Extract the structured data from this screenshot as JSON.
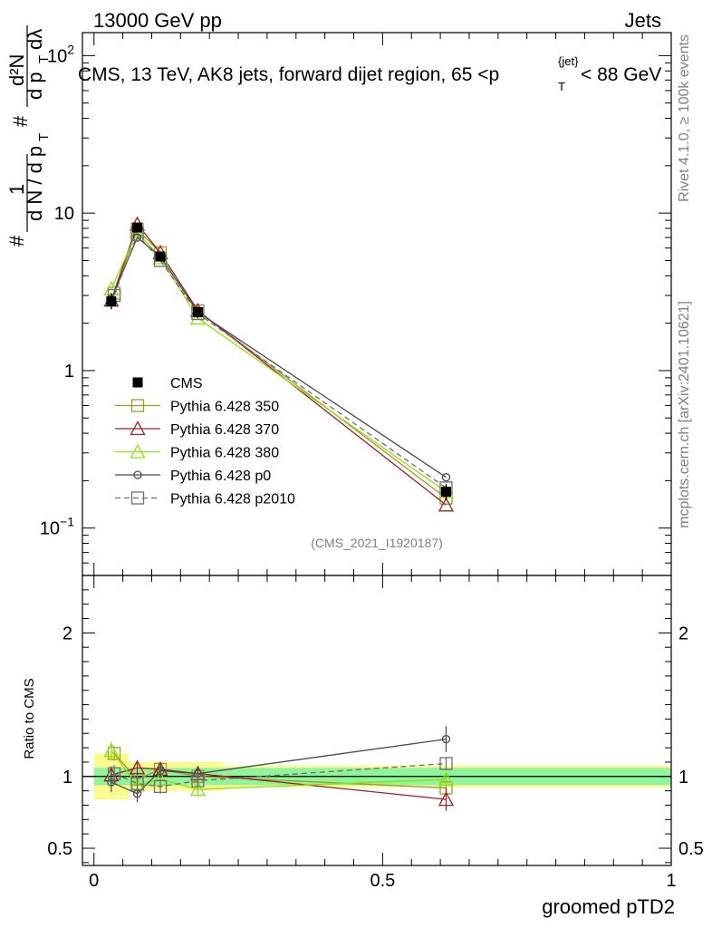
{
  "header": {
    "left": "13000 GeV pp",
    "right": "Jets"
  },
  "side_labels": {
    "rivet": "Rivet 4.1.0, ≥ 100k events",
    "mcplots": "mcplots.cern.ch [arXiv:2401.10621]"
  },
  "plot_title": {
    "main": "CMS, 13 TeV, AK8 jets, forward dijet region, 65 <p",
    "sub": "T",
    "sup": "{jet}",
    "tail": "< 88 GeV"
  },
  "watermark": "(CMS_2021_I1920187)",
  "y_title_parts": {
    "hash1": "#",
    "one": "1",
    "dN": "d N / d p",
    "T1": "T",
    "hash2": "#",
    "d2N": "d²N",
    "dpT": "d p",
    "T2": "T",
    "dlambda": "dλ"
  },
  "chart_data": {
    "type": "line",
    "xlabel": "groomed pTD2",
    "ylabel": "(1/N) d²N / (dp_T dλ)",
    "ratio_ylabel": "Ratio to CMS",
    "xlim": [
      -0.02,
      1.0
    ],
    "ylim": [
      0.05,
      140
    ],
    "yscale": "log",
    "ratio_ylim": [
      0.38,
      2.4
    ],
    "x_ticks": [
      0,
      0.5,
      1
    ],
    "x_tick_labels": [
      "0",
      "0.5",
      "1"
    ],
    "y_tick_labels": [
      {
        "v": 0.1,
        "base": "10",
        "exp": "−1"
      },
      {
        "v": 1,
        "base": "1",
        "exp": ""
      },
      {
        "v": 10,
        "base": "10",
        "exp": ""
      },
      {
        "v": 100,
        "base": "10",
        "exp": "2"
      }
    ],
    "ratio_tick_labels": [
      {
        "v": 0.5,
        "label": "0.5"
      },
      {
        "v": 1,
        "label": "1"
      },
      {
        "v": 2,
        "label": "2"
      }
    ],
    "bins": [
      [
        0.0,
        0.06
      ],
      [
        0.06,
        0.09
      ],
      [
        0.09,
        0.14
      ],
      [
        0.14,
        0.225
      ],
      [
        0.225,
        1.0
      ]
    ],
    "data": {
      "name": "CMS",
      "x": [
        0.03,
        0.075,
        0.115,
        0.18,
        0.61
      ],
      "y": [
        2.75,
        8.1,
        5.3,
        2.35,
        0.17
      ],
      "yerr": [
        0.3,
        0.5,
        0.35,
        0.2,
        0.02
      ],
      "stat_band": [
        0.06,
        0.06,
        0.06,
        0.06,
        0.06
      ],
      "total_band": [
        0.16,
        0.1,
        0.1,
        0.1,
        0.075
      ]
    },
    "series": [
      {
        "name": "Pythia 6.428 350",
        "color": "#a09a25",
        "marker": "square-open",
        "dash": false,
        "x": [
          0.035,
          0.075,
          0.115,
          0.18,
          0.61
        ],
        "y": [
          3.1,
          7.9,
          5.6,
          2.4,
          0.155
        ],
        "ratio": [
          1.16,
          0.98,
          1.05,
          1.0,
          0.92
        ],
        "ratio_err": [
          0.05,
          0.05,
          0.05,
          0.05,
          0.03
        ]
      },
      {
        "name": "Pythia 6.428 370",
        "color": "#a01e23",
        "marker": "triangle-open",
        "dash": false,
        "x": [
          0.03,
          0.075,
          0.115,
          0.18,
          0.61
        ],
        "y": [
          2.8,
          8.5,
          5.6,
          2.4,
          0.14
        ],
        "ratio": [
          1.01,
          1.06,
          1.05,
          1.02,
          0.84
        ],
        "ratio_err": [
          0.06,
          0.05,
          0.05,
          0.05,
          0.08
        ]
      },
      {
        "name": "Pythia 6.428 380",
        "color": "#8ee014",
        "marker": "triangle-open",
        "dash": false,
        "x": [
          0.03,
          0.075,
          0.115,
          0.18,
          0.61
        ],
        "y": [
          3.3,
          7.6,
          5.2,
          2.15,
          0.17
        ],
        "ratio": [
          1.18,
          0.94,
          0.98,
          0.91,
          0.98
        ],
        "ratio_err": [
          0.06,
          0.05,
          0.05,
          0.05,
          0.04
        ]
      },
      {
        "name": "Pythia 6.428 p0",
        "color": "#4a4a4a",
        "marker": "circle-open",
        "dash": false,
        "x": [
          0.03,
          0.075,
          0.115,
          0.18,
          0.61
        ],
        "y": [
          2.85,
          7.0,
          5.3,
          2.35,
          0.21
        ],
        "ratio": [
          0.96,
          0.88,
          1.04,
          1.02,
          1.26
        ],
        "ratio_err": [
          0.07,
          0.06,
          0.05,
          0.05,
          0.09
        ]
      },
      {
        "name": "Pythia 6.428 p2010",
        "color": "#6e6e6e",
        "marker": "square-open",
        "dash": true,
        "x": [
          0.035,
          0.075,
          0.115,
          0.18,
          0.61
        ],
        "y": [
          3.0,
          7.3,
          5.0,
          2.3,
          0.18
        ],
        "ratio": [
          1.02,
          0.95,
          0.93,
          0.97,
          1.09
        ],
        "ratio_err": [
          0.06,
          0.05,
          0.05,
          0.05,
          0.04
        ]
      }
    ]
  }
}
